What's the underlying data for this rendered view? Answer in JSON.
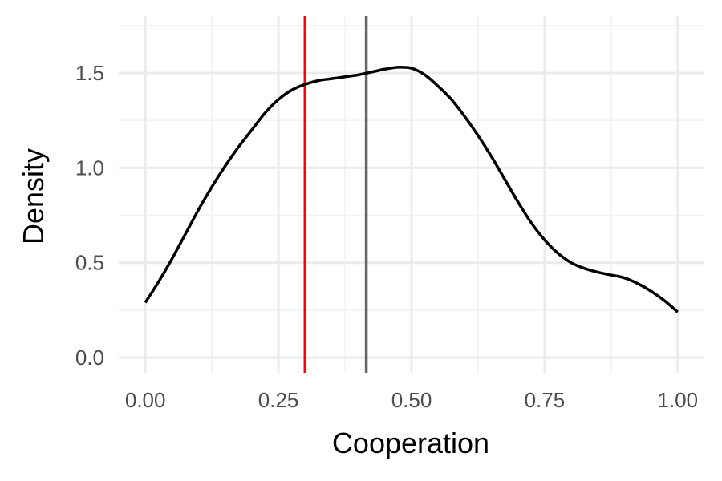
{
  "chart_data": {
    "type": "line",
    "title": "",
    "xlabel": "Cooperation",
    "ylabel": "Density",
    "xlim": [
      -0.05,
      1.05
    ],
    "ylim": [
      -0.08,
      1.8
    ],
    "x_ticks": [
      0.0,
      0.25,
      0.5,
      0.75,
      1.0
    ],
    "x_tick_labels": [
      "0.00",
      "0.25",
      "0.50",
      "0.75",
      "1.00"
    ],
    "y_ticks": [
      0.0,
      0.5,
      1.0,
      1.5
    ],
    "y_tick_labels": [
      "0.0",
      "0.5",
      "1.0",
      "1.5"
    ],
    "grid": true,
    "legend": "none",
    "series": [
      {
        "color": "#000000",
        "x": [
          0.0,
          0.025,
          0.05,
          0.075,
          0.1,
          0.125,
          0.15,
          0.175,
          0.2,
          0.225,
          0.25,
          0.275,
          0.3,
          0.325,
          0.35,
          0.375,
          0.4,
          0.425,
          0.45,
          0.475,
          0.5,
          0.525,
          0.55,
          0.575,
          0.6,
          0.625,
          0.65,
          0.675,
          0.7,
          0.725,
          0.75,
          0.775,
          0.8,
          0.825,
          0.85,
          0.875,
          0.9,
          0.925,
          0.95,
          0.975,
          1.0
        ],
        "y": [
          0.29,
          0.4,
          0.52,
          0.65,
          0.78,
          0.9,
          1.01,
          1.11,
          1.2,
          1.29,
          1.36,
          1.41,
          1.44,
          1.46,
          1.47,
          1.48,
          1.49,
          1.505,
          1.52,
          1.53,
          1.525,
          1.49,
          1.43,
          1.36,
          1.27,
          1.17,
          1.06,
          0.94,
          0.82,
          0.71,
          0.62,
          0.55,
          0.5,
          0.47,
          0.45,
          0.435,
          0.42,
          0.39,
          0.35,
          0.3,
          0.24
        ]
      }
    ],
    "vlines": [
      {
        "x": 0.3,
        "color": "#ff0000"
      },
      {
        "x": 0.415,
        "color": "#666666"
      }
    ]
  }
}
